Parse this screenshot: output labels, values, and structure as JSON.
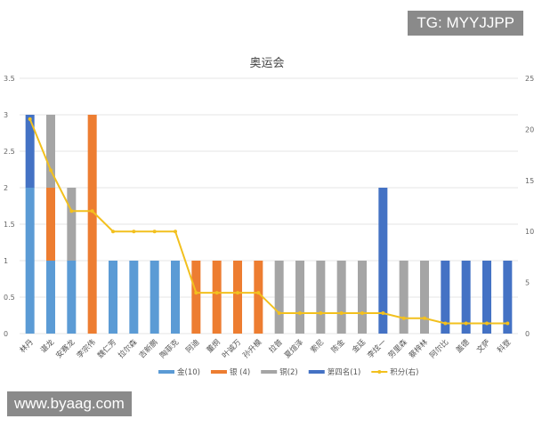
{
  "watermarks": {
    "top_right": "TG: MYYJJPP",
    "bottom_left": "www.byaag.com"
  },
  "chart_data": {
    "type": "bar",
    "stacked": true,
    "title": "奥运会",
    "categories": [
      "林丹",
      "谌龙",
      "安赛龙",
      "李宗伟",
      "魏仁芳",
      "拉尔森",
      "吉新鹏",
      "陶菲克",
      "阿迪",
      "董炯",
      "叶诚万",
      "孙升模",
      "拉普",
      "夏煊泽",
      "索尼",
      "陈金",
      "金廷",
      "李炫一",
      "劳里森",
      "蔡梓林",
      "阿尔比",
      "盖德",
      "文萨",
      "科登"
    ],
    "series": [
      {
        "name": "金(10)",
        "color": "#5b9bd5",
        "axis": "left",
        "values": [
          2,
          1,
          1,
          0,
          1,
          1,
          1,
          1,
          0,
          0,
          0,
          0,
          0,
          0,
          0,
          0,
          0,
          0,
          0,
          0,
          0,
          0,
          0,
          0
        ]
      },
      {
        "name": "银 (4)",
        "color": "#ed7d31",
        "axis": "left",
        "values": [
          0,
          1,
          0,
          3,
          0,
          0,
          0,
          0,
          1,
          1,
          1,
          1,
          0,
          0,
          0,
          0,
          0,
          0,
          0,
          0,
          0,
          0,
          0,
          0
        ]
      },
      {
        "name": "铜(2)",
        "color": "#a5a5a5",
        "axis": "left",
        "values": [
          0,
          1,
          1,
          0,
          0,
          0,
          0,
          0,
          0,
          0,
          0,
          0,
          1,
          1,
          1,
          1,
          1,
          0,
          1,
          1,
          0,
          0,
          0,
          0
        ]
      },
      {
        "name": "第四名(1)",
        "color": "#4472c4",
        "axis": "left",
        "values": [
          1,
          0,
          0,
          0,
          0,
          0,
          0,
          0,
          0,
          0,
          0,
          0,
          0,
          0,
          0,
          0,
          0,
          2,
          0,
          0,
          1,
          1,
          1,
          1
        ]
      },
      {
        "name": "积分(右)",
        "type": "line",
        "color": "#f2c01e",
        "axis": "right",
        "values": [
          21,
          16,
          12,
          12,
          10,
          10,
          10,
          10,
          4,
          4,
          4,
          4,
          2,
          2,
          2,
          2,
          2,
          2,
          1.5,
          1.5,
          1,
          1,
          1,
          1
        ]
      }
    ],
    "y_left": {
      "range": [
        0,
        3.5
      ],
      "ticks": [
        "0",
        "0.5",
        "1",
        "1.5",
        "2",
        "2.5",
        "3",
        "3.5"
      ]
    },
    "y_right": {
      "range": [
        0,
        25
      ],
      "ticks": [
        "0",
        "5",
        "10",
        "15",
        "20",
        "25"
      ]
    },
    "grid": true,
    "legend": "bottom"
  }
}
